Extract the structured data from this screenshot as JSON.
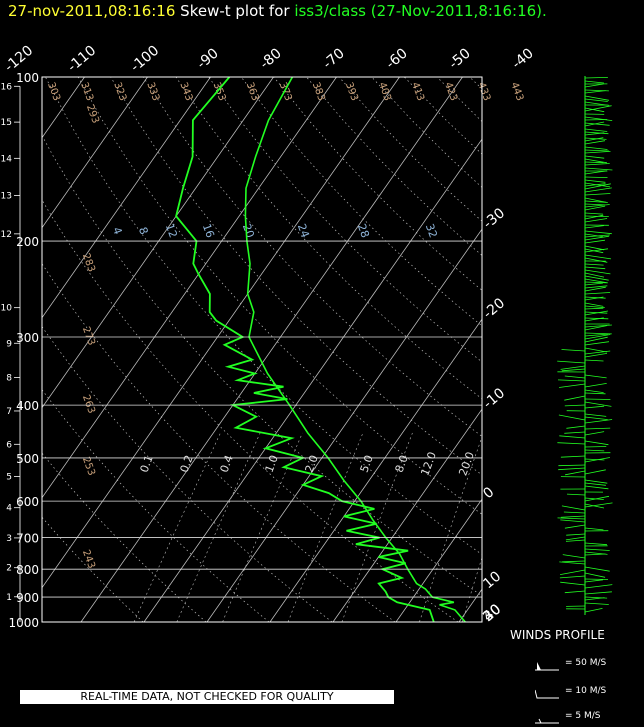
{
  "header": {
    "time_stamp": "27-nov-2011,08:16:16",
    "plot_title": "Skew-t plot for",
    "source": "iss3/class",
    "paren": "(27-Nov-2011,8:16:16)."
  },
  "colors": {
    "header_time": "#ffff33",
    "profile": "#22ff22",
    "grid": "#bbbbbb",
    "isotherm_labels": "#ffffff",
    "dry_adiabat_labels": "#c8a07a",
    "mixing_ratio_labels": "#8fb4d8",
    "moist_adiabat_labels": "#dddddd"
  },
  "chart_data": [
    {
      "type": "line",
      "subtype": "skew-t log-p",
      "title": "Skew-t plot for iss3/class (27-Nov-2011,8:16:16).",
      "pressure_ticks_hpa": [
        "100",
        "200",
        "300",
        "400",
        "500",
        "600",
        "700",
        "800",
        "900",
        "1000"
      ],
      "height_ticks_km": [
        "16",
        "15",
        "14",
        "13",
        "12",
        "10",
        "9",
        "8",
        "7",
        "6",
        "5",
        "4",
        "3",
        "2",
        "1"
      ],
      "isotherm_labels_top": [
        "-120",
        "-110",
        "-100",
        "-90",
        "-80",
        "-70",
        "-60",
        "-50",
        "-40"
      ],
      "isotherm_labels_right": [
        "-30",
        "-20",
        "-10",
        "0",
        "10",
        "20",
        "30",
        "40"
      ],
      "dry_adiabat_labels": [
        "293",
        "303",
        "313",
        "323",
        "333",
        "343",
        "353",
        "363",
        "373",
        "383",
        "393",
        "403",
        "413",
        "423",
        "433",
        "443",
        "283",
        "273",
        "263",
        "253",
        "243"
      ],
      "mixing_ratio_labels": [
        "4",
        "8",
        "12",
        "16",
        "20",
        "24",
        "28",
        "32"
      ],
      "moist_adiabat_labels": [
        "0.1",
        "0.2",
        "0.4",
        "1.0",
        "2.0",
        "5.0",
        "8.0",
        "12.0",
        "20.0"
      ],
      "xlim_celsius": [
        -40,
        40
      ],
      "ylim_hpa": [
        1000,
        100
      ],
      "y_scale": "log",
      "series": [
        {
          "role": "temperature",
          "points": [
            [
              1000,
              11
            ],
            [
              950,
              8
            ],
            [
              930,
              5
            ],
            [
              920,
              7
            ],
            [
              900,
              3
            ],
            [
              870,
              1
            ],
            [
              850,
              -1
            ],
            [
              800,
              -4
            ],
            [
              750,
              -7
            ],
            [
              700,
              -11
            ],
            [
              650,
              -15
            ],
            [
              600,
              -19
            ],
            [
              550,
              -24
            ],
            [
              500,
              -29
            ],
            [
              450,
              -35
            ],
            [
              400,
              -41
            ],
            [
              350,
              -48
            ],
            [
              300,
              -55
            ],
            [
              270,
              -57
            ],
            [
              250,
              -60
            ],
            [
              220,
              -63
            ],
            [
              200,
              -66
            ],
            [
              180,
              -69
            ],
            [
              160,
              -72
            ],
            [
              140,
              -74
            ],
            [
              120,
              -76
            ],
            [
              100,
              -77
            ]
          ]
        },
        {
          "role": "dewpoint",
          "points": [
            [
              1000,
              6
            ],
            [
              950,
              4
            ],
            [
              920,
              -2
            ],
            [
              900,
              -4
            ],
            [
              880,
              -5
            ],
            [
              850,
              -7
            ],
            [
              830,
              -4
            ],
            [
              800,
              -8
            ],
            [
              780,
              -5
            ],
            [
              760,
              -10
            ],
            [
              740,
              -6
            ],
            [
              720,
              -15
            ],
            [
              700,
              -12
            ],
            [
              680,
              -18
            ],
            [
              660,
              -14
            ],
            [
              640,
              -20
            ],
            [
              620,
              -16
            ],
            [
              600,
              -22
            ],
            [
              580,
              -25
            ],
            [
              560,
              -30
            ],
            [
              540,
              -28
            ],
            [
              520,
              -35
            ],
            [
              500,
              -33
            ],
            [
              480,
              -40
            ],
            [
              460,
              -37
            ],
            [
              440,
              -47
            ],
            [
              420,
              -45
            ],
            [
              400,
              -50
            ],
            [
              390,
              -42
            ],
            [
              380,
              -48
            ],
            [
              370,
              -44
            ],
            [
              360,
              -52
            ],
            [
              350,
              -50
            ],
            [
              340,
              -55
            ],
            [
              330,
              -52
            ],
            [
              310,
              -58
            ],
            [
              300,
              -56
            ],
            [
              280,
              -62
            ],
            [
              270,
              -64
            ],
            [
              250,
              -66
            ],
            [
              230,
              -70
            ],
            [
              220,
              -72
            ],
            [
              200,
              -74
            ],
            [
              180,
              -80
            ],
            [
              160,
              -82
            ],
            [
              140,
              -84
            ],
            [
              120,
              -88
            ],
            [
              100,
              -87
            ]
          ]
        }
      ]
    },
    {
      "type": "line",
      "subtype": "wind barbs",
      "title": "WINDS PROFILE",
      "legend": [
        "= 50 M/S",
        "= 10 M/S",
        "= 5 M/S"
      ]
    }
  ],
  "winds_profile": {
    "title": "WINDS PROFILE",
    "legend": [
      {
        "label": "= 50 M/S"
      },
      {
        "label": "= 10 M/S"
      },
      {
        "label": "= 5 M/S"
      }
    ]
  },
  "disclaimer": "REAL-TIME DATA, NOT CHECKED FOR QUALITY"
}
